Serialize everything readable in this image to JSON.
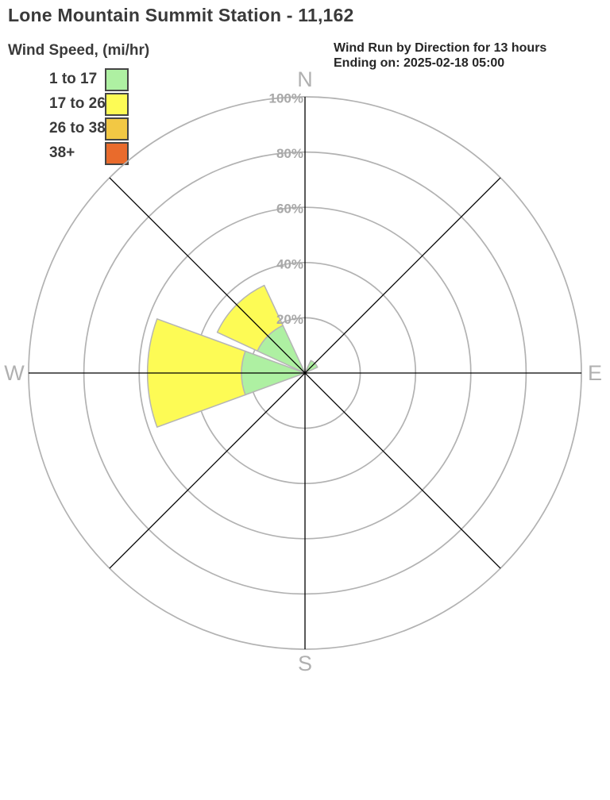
{
  "header": {
    "title": "Lone Mountain Summit Station - 11,162",
    "right_line1": "Wind Run by Direction for 13 hours",
    "right_line2": "Ending on: 2025-02-18 05:00"
  },
  "legend": {
    "title": "Wind Speed, (mi/hr)",
    "items": [
      {
        "label": "1 to 17",
        "color": "#aef0a2"
      },
      {
        "label": "17 to 26",
        "color": "#fdfb55"
      },
      {
        "label": "26 to 38",
        "color": "#f2c844"
      },
      {
        "label": "38+",
        "color": "#e96b2c"
      }
    ]
  },
  "chart_data": {
    "type": "wind-rose",
    "title": "Wind Run by Direction for 13 hours Ending on: 2025-02-18 05:00",
    "directions": [
      "N",
      "NE",
      "E",
      "SE",
      "S",
      "SW",
      "W",
      "NW"
    ],
    "series": [
      {
        "name": "1 to 17",
        "color": "#aef0a2",
        "values": [
          0,
          5,
          0,
          0,
          0,
          0,
          23,
          19
        ]
      },
      {
        "name": "17 to 26",
        "color": "#fdfb55",
        "values": [
          0,
          0,
          0,
          0,
          0,
          0,
          34,
          16
        ]
      },
      {
        "name": "26 to 38",
        "color": "#f2c844",
        "values": [
          0,
          0,
          0,
          0,
          0,
          0,
          0,
          0
        ]
      },
      {
        "name": "38+",
        "color": "#e96b2c",
        "values": [
          0,
          0,
          0,
          0,
          0,
          0,
          0,
          0
        ]
      }
    ],
    "radial_ticks": [
      "20%",
      "40%",
      "60%",
      "80%",
      "100%"
    ],
    "radial_max": 100,
    "compass_labels": {
      "north": "N",
      "east": "E",
      "south": "S",
      "west": "W"
    },
    "grid_color": "#b2b2b2",
    "axis_line_color": "#000000",
    "tick_label_color": "#a9a9a9",
    "compass_label_color": "#b0b0b0"
  }
}
